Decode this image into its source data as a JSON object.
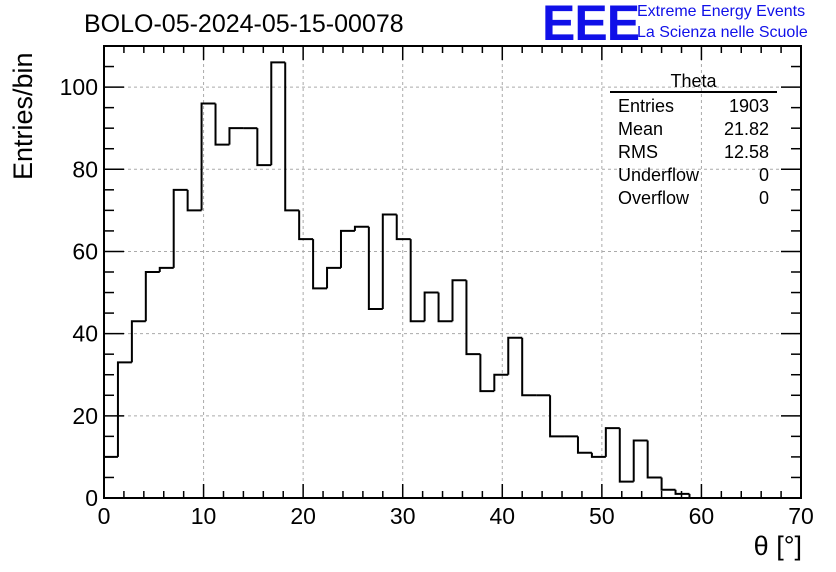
{
  "chart_data": {
    "type": "histogram",
    "title": "BOLO-05-2024-05-15-00078",
    "xlabel": "θ [°]",
    "ylabel": "Entries/bin",
    "xlim": [
      0,
      70
    ],
    "ylim": [
      0,
      110
    ],
    "grid": true,
    "bin_width": 1.4,
    "bin_edges": [
      0,
      1.4,
      2.8,
      4.2,
      5.6,
      7.0,
      8.4,
      9.8,
      11.2,
      12.6,
      14.0,
      15.4,
      16.8,
      18.2,
      19.6,
      21.0,
      22.4,
      23.8,
      25.2,
      26.6,
      28.0,
      29.4,
      30.8,
      32.2,
      33.6,
      35.0,
      36.4,
      37.8,
      39.2,
      40.6,
      42.0,
      43.4,
      44.8,
      46.2,
      47.6,
      49.0,
      50.4,
      51.8,
      53.2,
      54.6,
      56.0,
      57.4,
      58.8,
      60.2,
      61.6,
      63.0,
      64.4,
      65.8,
      67.2,
      68.6,
      70.0
    ],
    "values": [
      10,
      33,
      43,
      55,
      56,
      75,
      70,
      96,
      86,
      90,
      90,
      81,
      106,
      70,
      63,
      51,
      56,
      65,
      66,
      46,
      69,
      63,
      43,
      50,
      43,
      53,
      35,
      26,
      30,
      39,
      25,
      25,
      15,
      15,
      11,
      10,
      17,
      4,
      14,
      5,
      2,
      1,
      0,
      0,
      0,
      0,
      0,
      0,
      0,
      0
    ],
    "xticks": [
      "0",
      "10",
      "20",
      "30",
      "40",
      "50",
      "60",
      "70"
    ],
    "yticks": [
      "0",
      "20",
      "40",
      "60",
      "80",
      "100"
    ]
  },
  "stats": {
    "title": "Theta",
    "rows": [
      {
        "label": "Entries",
        "value": "1903"
      },
      {
        "label": "Mean",
        "value": "21.82"
      },
      {
        "label": "RMS",
        "value": "12.58"
      },
      {
        "label": "Underflow",
        "value": "0"
      },
      {
        "label": "Overflow",
        "value": "0"
      }
    ]
  },
  "logo": {
    "letters": "EEE",
    "line1": "Extreme Energy Events",
    "line2": "La Scienza nelle Scuole",
    "color": "#1010e8"
  }
}
